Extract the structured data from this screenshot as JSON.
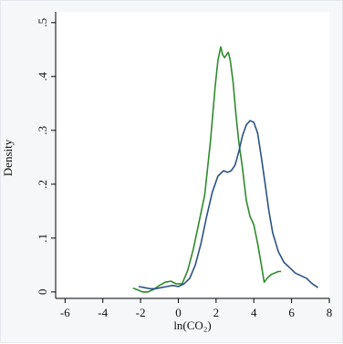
{
  "chart_data": {
    "type": "line",
    "title": "",
    "xlabel": "ln(CO₂)",
    "ylabel": "Density",
    "xlim": [
      -6.5,
      8
    ],
    "ylim": [
      -0.012,
      0.52
    ],
    "x_ticks": [
      -6,
      -4,
      -2,
      0,
      2,
      4,
      6,
      8
    ],
    "x_tick_labels": [
      "-6",
      "-4",
      "-2",
      "0",
      "2",
      "4",
      "6",
      "8"
    ],
    "y_ticks": [
      0,
      0.1,
      0.2,
      0.3,
      0.4,
      0.5
    ],
    "y_tick_labels": [
      "0",
      ".1",
      ".2",
      ".3",
      ".4",
      ".5"
    ],
    "grid": false,
    "legend": "none",
    "series": [
      {
        "color": "#2e8b2e",
        "x": [
          -2.4,
          -2.1,
          -1.9,
          -1.6,
          -1.3,
          -1.0,
          -0.7,
          -0.4,
          -0.1,
          0.2,
          0.5,
          0.8,
          1.1,
          1.4,
          1.7,
          1.95,
          2.1,
          2.25,
          2.35,
          2.45,
          2.55,
          2.65,
          2.75,
          2.9,
          3.05,
          3.2,
          3.4,
          3.6,
          3.8,
          4.0,
          4.2,
          4.4,
          4.55,
          4.7,
          4.9,
          5.1,
          5.3,
          5.45
        ],
        "y": [
          0.007,
          0.003,
          0.0,
          0.0,
          0.005,
          0.012,
          0.018,
          0.02,
          0.015,
          0.015,
          0.04,
          0.08,
          0.13,
          0.18,
          0.28,
          0.38,
          0.43,
          0.455,
          0.44,
          0.435,
          0.44,
          0.445,
          0.43,
          0.39,
          0.33,
          0.28,
          0.23,
          0.17,
          0.14,
          0.125,
          0.09,
          0.05,
          0.018,
          0.025,
          0.032,
          0.035,
          0.038,
          0.038
        ]
      },
      {
        "color": "#2c5283",
        "x": [
          -2.1,
          -1.8,
          -1.5,
          -1.2,
          -0.9,
          -0.6,
          -0.3,
          0.0,
          0.3,
          0.6,
          0.9,
          1.2,
          1.5,
          1.8,
          2.1,
          2.4,
          2.6,
          2.8,
          3.0,
          3.2,
          3.4,
          3.6,
          3.8,
          4.0,
          4.2,
          4.4,
          4.6,
          4.8,
          5.0,
          5.3,
          5.6,
          5.9,
          6.2,
          6.5,
          6.8,
          7.1,
          7.4
        ],
        "y": [
          0.01,
          0.008,
          0.006,
          0.006,
          0.008,
          0.01,
          0.012,
          0.01,
          0.015,
          0.025,
          0.05,
          0.09,
          0.14,
          0.185,
          0.215,
          0.225,
          0.222,
          0.225,
          0.235,
          0.26,
          0.29,
          0.31,
          0.318,
          0.315,
          0.295,
          0.25,
          0.2,
          0.15,
          0.11,
          0.075,
          0.055,
          0.045,
          0.035,
          0.03,
          0.025,
          0.015,
          0.008
        ]
      }
    ]
  }
}
